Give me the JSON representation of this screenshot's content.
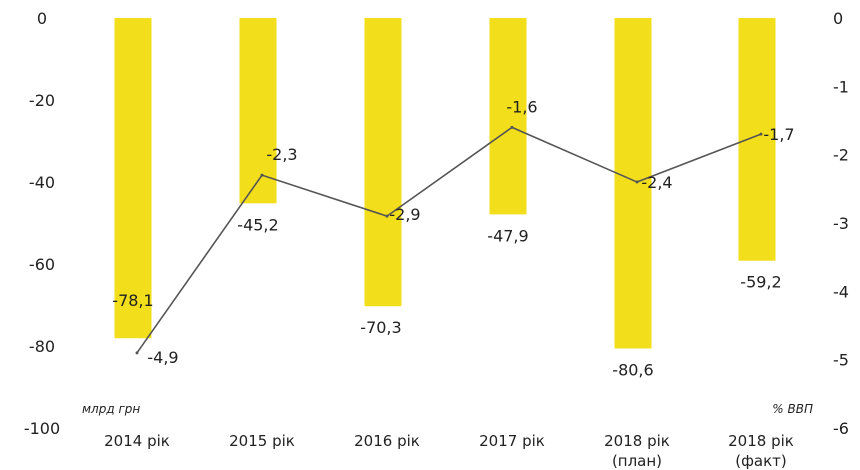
{
  "chart_data": {
    "type": "bar",
    "categories": [
      [
        "2014 рік"
      ],
      [
        "2015 рік"
      ],
      [
        "2016 рік"
      ],
      [
        "2017 рік"
      ],
      [
        "2018 рік",
        "(план)"
      ],
      [
        "2018 рік",
        "(факт)"
      ]
    ],
    "bar_series": {
      "values": [
        -78.1,
        -45.2,
        -70.3,
        -47.9,
        -80.6,
        -59.2
      ],
      "labels": [
        "-78,1",
        "-45,2",
        "-70,3",
        "-47,9",
        "-80,6",
        "-59,2"
      ],
      "color": "#F2DE1A",
      "axis": "left"
    },
    "line_series": {
      "values": [
        -4.9,
        -2.3,
        -2.9,
        -1.6,
        -2.4,
        -1.7
      ],
      "labels": [
        "-4,9",
        "-2,3",
        "-2,9",
        "-1,6",
        "-2,4",
        "-1,7"
      ],
      "color": "#555555",
      "axis": "right"
    },
    "left_axis": {
      "unit_label": "млрд грн",
      "ylim": [
        -100,
        0
      ],
      "ticks": [
        0,
        -20,
        -40,
        -60,
        -80,
        -100
      ],
      "tick_labels": [
        "0",
        "-20",
        "-40",
        "-60",
        "-80",
        "-100"
      ]
    },
    "right_axis": {
      "unit_label": "% ВВП",
      "ylim": [
        -6,
        0
      ],
      "ticks": [
        0,
        -1,
        -2,
        -3,
        -4,
        -5,
        -6
      ],
      "tick_labels": [
        "0",
        "-1",
        "-2",
        "-3",
        "-4",
        "-5",
        "-6"
      ]
    },
    "grid": false
  }
}
